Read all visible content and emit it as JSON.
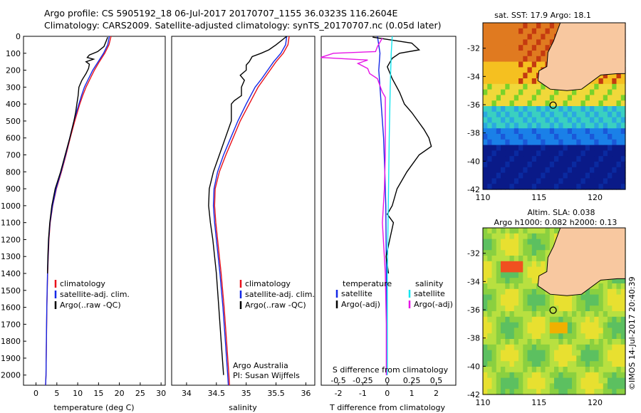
{
  "header": {
    "line1": "Argo profile: CS 5905192_18 06-Jul-2017 20170707_1155 36.0323S 116.2604E",
    "line2": "Climatology: CARS2009. Satellite-adjusted climatology: synTS_20170707.nc (0.05d later)"
  },
  "side_label": "©IMOS 14-Jul-2017 20:40:39",
  "colors": {
    "clim": "#e8101a",
    "sat": "#1428e6",
    "argo": "#000000",
    "sat_s": "#14e6f0",
    "argo_s": "#e614e6",
    "land": "#f8c8a0"
  },
  "chart_data": [
    {
      "type": "line",
      "xlabel": "temperature (deg C)",
      "ylabel": "",
      "xlim": [
        -3,
        31
      ],
      "ylim": [
        2060,
        0
      ],
      "xticks": [
        0,
        5,
        10,
        15,
        20,
        25,
        30
      ],
      "yticks": [
        0,
        100,
        200,
        300,
        400,
        500,
        600,
        700,
        800,
        900,
        1000,
        1100,
        1200,
        1300,
        1400,
        1500,
        1600,
        1700,
        1800,
        1900,
        2000
      ],
      "legend": [
        "climatology",
        "satellite-adj. clim.",
        "Argo(..raw -QC)"
      ],
      "legend_position": "lower-center",
      "series": [
        {
          "name": "climatology",
          "color": "#e8101a",
          "depth": [
            0,
            50,
            100,
            150,
            200,
            250,
            300,
            350,
            400,
            500,
            600,
            700,
            800,
            900,
            1000,
            1100,
            1200,
            1400,
            1600,
            1800,
            2000,
            2060
          ],
          "values": [
            18.0,
            17.5,
            16.5,
            15.2,
            14.0,
            13.0,
            12.0,
            11.2,
            10.5,
            9.3,
            8.2,
            7.2,
            6.1,
            4.9,
            4.0,
            3.4,
            3.1,
            2.8,
            2.6,
            2.5,
            2.4,
            2.3
          ]
        },
        {
          "name": "satellite-adj. clim.",
          "color": "#1428e6",
          "depth": [
            0,
            50,
            100,
            150,
            200,
            250,
            300,
            350,
            400,
            500,
            600,
            700,
            800,
            900,
            1000,
            1100,
            1200,
            1400,
            1600,
            1800,
            2000,
            2060
          ],
          "values": [
            17.6,
            17.2,
            16.2,
            14.9,
            13.6,
            12.6,
            11.6,
            10.9,
            10.3,
            9.1,
            8.1,
            7.1,
            6.0,
            4.8,
            3.95,
            3.35,
            3.05,
            2.75,
            2.58,
            2.48,
            2.4,
            2.3
          ]
        },
        {
          "name": "Argo(..raw -QC)",
          "color": "#000000",
          "depth": [
            5,
            30,
            60,
            90,
            110,
            125,
            135,
            150,
            165,
            190,
            220,
            260,
            300,
            350,
            400,
            450,
            500,
            600,
            700,
            800,
            900,
            1000,
            1100,
            1200,
            1300,
            1400
          ],
          "values": [
            17.2,
            16.8,
            16.3,
            14.8,
            12.8,
            12.3,
            13.8,
            12.0,
            12.8,
            12.6,
            12.0,
            11.0,
            10.3,
            10.1,
            9.8,
            9.5,
            9.1,
            8.1,
            7.0,
            5.9,
            4.6,
            3.8,
            3.3,
            3.0,
            2.85,
            2.75
          ]
        }
      ]
    },
    {
      "type": "line",
      "xlabel": "salinity",
      "xlim": [
        33.75,
        36.15
      ],
      "ylim": [
        2060,
        0
      ],
      "xticks": [
        34,
        34.5,
        35,
        35.5,
        36
      ],
      "legend": [
        "climatology",
        "satellite-adj. clim.",
        "Argo(..raw -QC)"
      ],
      "legend_position": "lower-right",
      "annotation": [
        "Argo Australia",
        "PI: Susan Wijffels"
      ],
      "series": [
        {
          "name": "climatology",
          "color": "#e8101a",
          "depth": [
            0,
            50,
            100,
            150,
            200,
            250,
            300,
            400,
            500,
            600,
            700,
            800,
            900,
            1000,
            1100,
            1200,
            1400,
            1600,
            1800,
            2000,
            2060
          ],
          "values": [
            35.72,
            35.7,
            35.62,
            35.5,
            35.4,
            35.3,
            35.2,
            35.05,
            34.9,
            34.78,
            34.66,
            34.55,
            34.48,
            34.47,
            34.49,
            34.52,
            34.58,
            34.63,
            34.67,
            34.71,
            34.72
          ]
        },
        {
          "name": "satellite-adj. clim.",
          "color": "#1428e6",
          "depth": [
            0,
            50,
            100,
            150,
            200,
            250,
            300,
            400,
            500,
            600,
            700,
            800,
            900,
            1000,
            1100,
            1200,
            1400,
            1600,
            1800,
            2000,
            2060
          ],
          "values": [
            35.68,
            35.66,
            35.58,
            35.46,
            35.36,
            35.26,
            35.15,
            35.0,
            34.86,
            34.74,
            34.62,
            34.52,
            34.46,
            34.45,
            34.47,
            34.5,
            34.56,
            34.61,
            34.65,
            34.69,
            34.7
          ]
        },
        {
          "name": "Argo(..raw -QC)",
          "color": "#000000",
          "depth": [
            0,
            50,
            80,
            100,
            120,
            150,
            170,
            200,
            230,
            260,
            300,
            350,
            380,
            400,
            500,
            600,
            700,
            800,
            900,
            1000,
            1100,
            1200,
            1400,
            1600,
            1800,
            1900,
            2000
          ],
          "values": [
            35.68,
            35.5,
            35.38,
            35.25,
            35.1,
            35.05,
            35.0,
            35.0,
            34.9,
            34.97,
            34.92,
            34.92,
            34.8,
            34.75,
            34.75,
            34.65,
            34.55,
            34.45,
            34.38,
            34.37,
            34.4,
            34.44,
            34.5,
            34.54,
            34.58,
            34.6,
            34.62
          ]
        }
      ]
    },
    {
      "type": "line",
      "xlabel": "T difference from climatology",
      "xlabel_top": "S difference from climatology",
      "xlim": [
        -2.7,
        2.8
      ],
      "ylim": [
        2060,
        0
      ],
      "xticks": [
        -2,
        -1,
        0,
        1,
        2
      ],
      "xticks_s": [
        -0.5,
        -0.25,
        0,
        0.25,
        0.5
      ],
      "legend": {
        "temperature": "temperature",
        "salinity": "salinity",
        "t_sat": "satellite",
        "t_argo": "Argo(-adj)",
        "s_sat": "satellite",
        "s_argo": "Argo(-adj)"
      },
      "series": [
        {
          "name": "satellite",
          "group": "temperature",
          "color": "#1428e6",
          "depth": [
            0,
            100,
            200,
            400,
            600,
            800,
            1000,
            1200,
            1500,
            2000
          ],
          "values": [
            -0.4,
            -0.3,
            -0.35,
            -0.25,
            -0.15,
            -0.1,
            -0.06,
            -0.05,
            -0.03,
            -0.02
          ]
        },
        {
          "name": "Argo(-adj)",
          "group": "temperature",
          "color": "#000000",
          "depth": [
            5,
            40,
            80,
            100,
            130,
            180,
            250,
            330,
            400,
            450,
            500,
            550,
            600,
            650,
            700,
            800,
            900,
            1000,
            1050,
            1100,
            1200,
            1300,
            1400
          ],
          "values": [
            -0.6,
            1.0,
            1.3,
            0.5,
            0.2,
            0.0,
            0.2,
            0.5,
            0.7,
            1.0,
            1.25,
            1.5,
            1.7,
            1.8,
            1.3,
            0.8,
            0.4,
            0.2,
            0.0,
            0.25,
            0.1,
            -0.05,
            0.05
          ]
        },
        {
          "name": "satellite",
          "group": "salinity",
          "color": "#14e6f0",
          "depth": [
            0,
            100,
            300,
            600,
            1000,
            1400,
            2000
          ],
          "values": [
            0.05,
            0.04,
            0.03,
            0.02,
            0.01,
            0.0,
            0.0
          ]
        },
        {
          "name": "Argo(-adj)",
          "group": "salinity",
          "color": "#e614e6",
          "depth": [
            10,
            60,
            90,
            100,
            125,
            140,
            160,
            190,
            220,
            250,
            300,
            330,
            360,
            400,
            500,
            700,
            900,
            1100,
            1400,
            1700,
            2000
          ],
          "values": [
            -0.05,
            -0.1,
            -0.12,
            -0.55,
            -0.68,
            -0.2,
            -0.3,
            -0.2,
            -0.18,
            -0.1,
            -0.07,
            -0.05,
            -0.02,
            -0.02,
            -0.02,
            -0.02,
            -0.03,
            -0.05,
            -0.02,
            -0.01,
            -0.01
          ]
        }
      ]
    },
    {
      "type": "heatmap",
      "title": "sat. SST: 17.9  Argo: 18.1",
      "xlim": [
        110,
        122.7
      ],
      "ylim": [
        -42,
        -30.2
      ],
      "xticks": [
        110,
        115,
        120
      ],
      "yticks": [
        -32,
        -34,
        -36,
        -38,
        -40,
        -42
      ],
      "marker": {
        "lon": 116.26,
        "lat": -36.03
      }
    },
    {
      "type": "heatmap",
      "title": "Altim. SLA: 0.038",
      "subtitle": "Argo h1000: 0.082  h2000: 0.13",
      "xlim": [
        110,
        122.7
      ],
      "ylim": [
        -42,
        -30.2
      ],
      "xticks": [
        110,
        115,
        120
      ],
      "yticks": [
        -32,
        -34,
        -36,
        -38,
        -40,
        -42
      ],
      "marker": {
        "lon": 116.26,
        "lat": -36.03
      }
    }
  ]
}
